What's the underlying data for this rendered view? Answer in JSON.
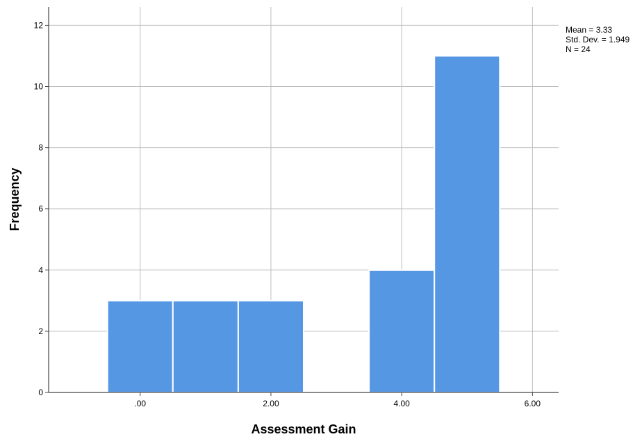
{
  "chart_data": {
    "type": "bar",
    "subtype": "histogram",
    "xlabel": "Assessment Gain",
    "ylabel": "Frequency",
    "bins": [
      {
        "start": -0.5,
        "end": 0.5,
        "count": 3
      },
      {
        "start": 0.5,
        "end": 1.5,
        "count": 3
      },
      {
        "start": 1.5,
        "end": 2.5,
        "count": 3
      },
      {
        "start": 2.5,
        "end": 3.5,
        "count": 0
      },
      {
        "start": 3.5,
        "end": 4.5,
        "count": 4
      },
      {
        "start": 4.5,
        "end": 5.5,
        "count": 11
      }
    ],
    "xlim": [
      -1.4,
      6.4
    ],
    "ylim": [
      0,
      12.6
    ],
    "x_ticks": [
      0,
      2,
      4,
      6
    ],
    "x_tick_labels": [
      ".00",
      "2.00",
      "4.00",
      "6.00"
    ],
    "y_ticks": [
      0,
      2,
      4,
      6,
      8,
      10,
      12
    ],
    "y_tick_labels": [
      "0",
      "2",
      "4",
      "6",
      "8",
      "10",
      "12"
    ],
    "grid": true,
    "stats": {
      "mean": "Mean = 3.33",
      "std_dev": "Std. Dev. = 1.949",
      "n": "N = 24"
    },
    "colors": {
      "bar_fill": "#5697e4",
      "bar_stroke": "#ffffff",
      "grid": "#bdbdbd",
      "axis": "#444444"
    }
  }
}
